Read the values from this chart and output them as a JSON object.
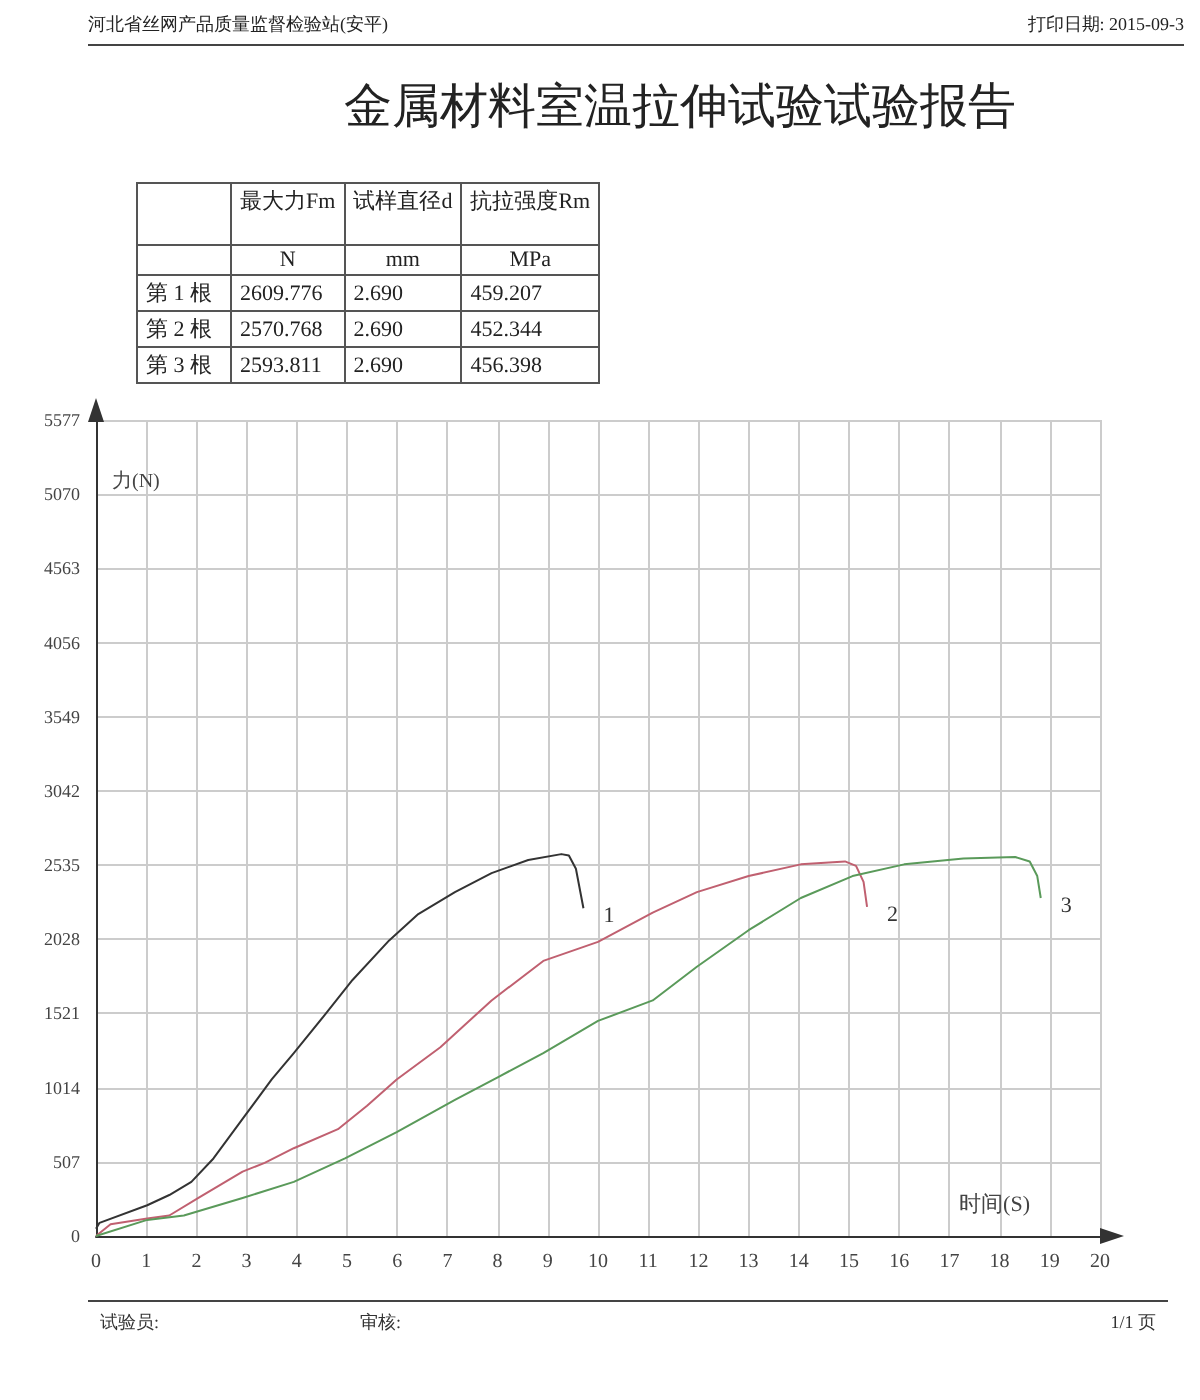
{
  "chart_data": [
    {
      "type": "other",
      "title": "金属材料室温拉伸试验试验报告",
      "annotations": [
        "河北省丝网产品质量监督检验站(安平)",
        "打印日期: 2015-09-3"
      ],
      "categories": [
        "最大力Fm",
        "试样直径d",
        "抗拉强度Rm"
      ],
      "y_categories": [
        null,
        "第 1 根",
        "第 2 根",
        "第 3 根"
      ],
      "cell_labels": [
        [
          "N",
          "mm",
          "MPa"
        ],
        [
          "2609.776",
          "2.690",
          "459.207"
        ],
        [
          "2570.768",
          "2.690",
          "452.344"
        ],
        [
          "2593.811",
          "2.690",
          "456.398"
        ]
      ]
    },
    {
      "type": "line",
      "xlabel": "时间(S)",
      "ylabel": "力(N)",
      "xlim": [
        0,
        20
      ],
      "xticks": [
        0,
        1,
        2,
        3,
        4,
        5,
        6,
        7,
        8,
        9,
        10,
        11,
        12,
        13,
        14,
        15,
        16,
        17,
        18,
        19,
        20
      ],
      "ylim": [
        0,
        5577
      ],
      "yticks": [
        0,
        507,
        1014,
        1521,
        2028,
        2535,
        3042,
        3549,
        4056,
        4563,
        5070,
        5577
      ],
      "grid": true,
      "marker": "none",
      "legend": false,
      "annotations": [
        "试验员:",
        "审核:",
        "1/1 页"
      ],
      "series": [
        {
          "name": "1",
          "color": "#333333",
          "x": [
            0,
            0.07,
            1.02,
            1.46,
            1.9,
            2.34,
            2.92,
            3.5,
            3.94,
            4.53,
            5.11,
            5.84,
            6.42,
            7.15,
            7.88,
            8.61,
            9.27,
            9.42,
            9.56,
            9.71
          ],
          "values": [
            50,
            90,
            210,
            280,
            370,
            530,
            800,
            1070,
            1250,
            1500,
            1750,
            2020,
            2200,
            2350,
            2480,
            2570,
            2610,
            2600,
            2510,
            2240
          ]
        },
        {
          "name": "2",
          "color": "#c06070",
          "x": [
            0,
            0.29,
            1.02,
            1.46,
            2.04,
            2.92,
            3.36,
            3.94,
            4.82,
            5.4,
            5.99,
            6.86,
            7.88,
            8.91,
            10,
            11.09,
            11.97,
            13,
            14.04,
            14.92,
            15.14,
            15.29,
            15.36
          ],
          "values": [
            0,
            80,
            120,
            140,
            260,
            440,
            500,
            600,
            730,
            890,
            1070,
            1290,
            1610,
            1880,
            2010,
            2210,
            2350,
            2460,
            2540,
            2560,
            2530,
            2420,
            2250
          ]
        },
        {
          "name": "3",
          "color": "#5a9a5a",
          "x": [
            0,
            1.02,
            1.75,
            2.92,
            3.94,
            4.96,
            5.99,
            7.15,
            8.03,
            8.91,
            10,
            11.09,
            11.97,
            13,
            14.04,
            15.07,
            16.1,
            17.28,
            18.31,
            18.6,
            18.75,
            18.82
          ],
          "values": [
            0,
            110,
            140,
            260,
            370,
            530,
            710,
            930,
            1090,
            1250,
            1470,
            1610,
            1840,
            2090,
            2310,
            2460,
            2540,
            2580,
            2590,
            2560,
            2460,
            2310
          ]
        }
      ]
    }
  ]
}
